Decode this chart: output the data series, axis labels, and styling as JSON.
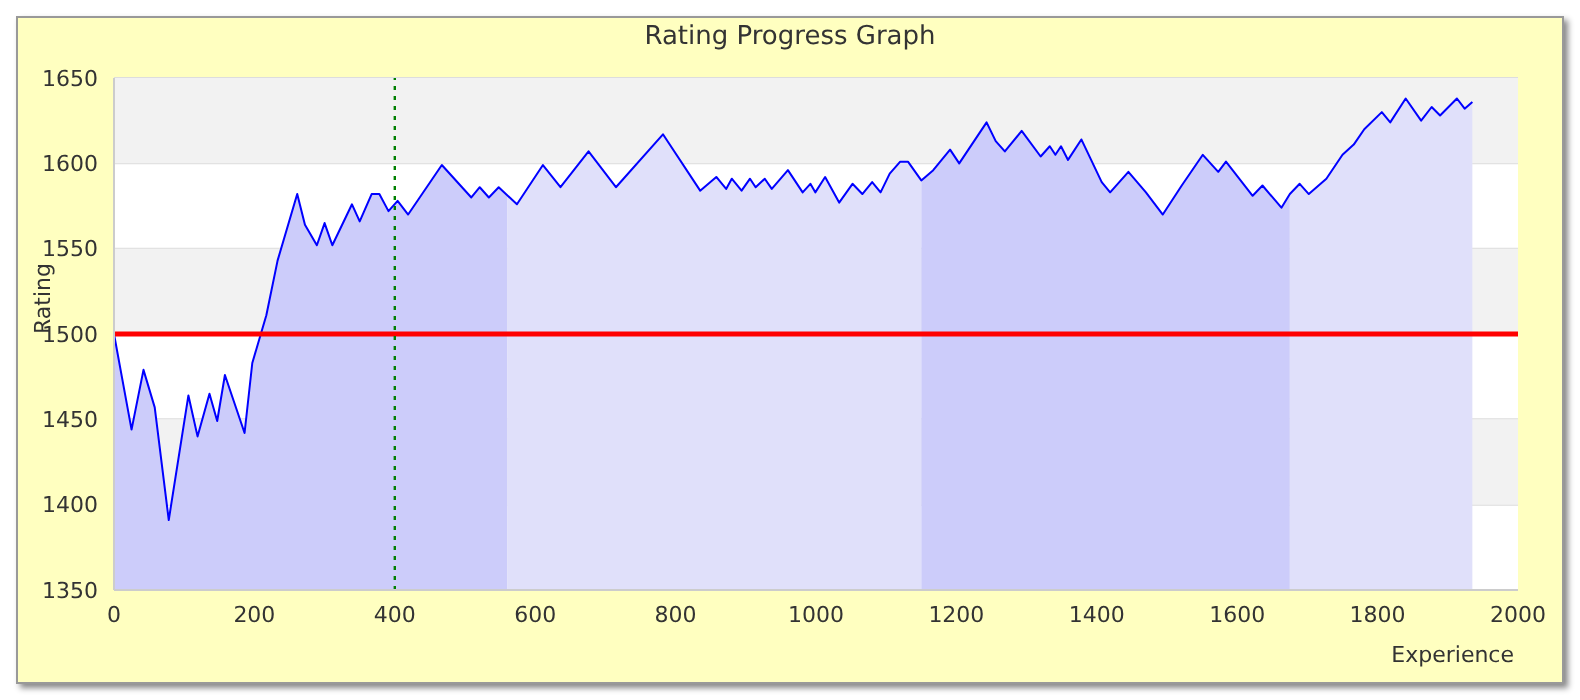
{
  "chart_data": {
    "type": "area",
    "title": "Rating Progress Graph",
    "xlabel": "Experience",
    "ylabel": "Rating",
    "xlim": [
      0,
      2000
    ],
    "xticks": [
      0,
      200,
      400,
      600,
      800,
      1000,
      1200,
      1400,
      1600,
      1800,
      2000
    ],
    "ylim": [
      1350,
      1650
    ],
    "yticks": [
      1350,
      1400,
      1450,
      1500,
      1550,
      1600,
      1650
    ],
    "grid": "y",
    "legend": false,
    "marker": "none",
    "ref_lines": [
      {
        "axis": "y",
        "value": 1500,
        "color": "#ff0000",
        "line_style": "solid"
      },
      {
        "axis": "x",
        "value": 400,
        "color": "#008000",
        "line_style": "dotted"
      }
    ],
    "series": [
      {
        "color": "#ccccfa",
        "x": [
          0,
          25,
          42,
          58,
          78,
          106,
          119,
          136,
          147,
          158,
          186,
          197,
          217,
          233,
          261,
          272,
          289,
          300,
          311,
          339,
          350,
          367,
          378,
          391,
          404,
          419,
          467,
          509,
          521,
          534,
          548,
          560
        ],
        "values": [
          1500,
          1444,
          1479,
          1457,
          1391,
          1464,
          1440,
          1465,
          1449,
          1476,
          1442,
          1483,
          1511,
          1543,
          1582,
          1564,
          1552,
          1565,
          1552,
          1576,
          1566,
          1582,
          1582,
          1572,
          1578,
          1570,
          1599,
          1580,
          1586,
          1580,
          1586,
          1581
        ]
      },
      {
        "color": "#e0e0fa",
        "x": [
          560,
          574,
          611,
          636,
          676,
          715,
          782,
          835,
          858,
          872,
          880,
          894,
          906,
          914,
          927,
          937,
          960,
          981,
          992,
          999,
          1013,
          1033,
          1052,
          1066,
          1080,
          1092,
          1105,
          1120,
          1131,
          1150
        ],
        "values": [
          1581,
          1576,
          1599,
          1586,
          1607,
          1586,
          1617,
          1584,
          1592,
          1585,
          1591,
          1584,
          1591,
          1586,
          1591,
          1585,
          1596,
          1583,
          1588,
          1583,
          1592,
          1577,
          1588,
          1582,
          1589,
          1583,
          1594,
          1601,
          1601,
          1590
        ]
      },
      {
        "color": "#ccccfa",
        "x": [
          1150,
          1167,
          1191,
          1204,
          1243,
          1256,
          1269,
          1293,
          1320,
          1333,
          1341,
          1349,
          1359,
          1378,
          1407,
          1419,
          1445,
          1470,
          1494,
          1521,
          1551,
          1573,
          1584,
          1622,
          1636,
          1663,
          1675
        ],
        "values": [
          1590,
          1596,
          1608,
          1600,
          1624,
          1613,
          1607,
          1619,
          1604,
          1610,
          1605,
          1610,
          1602,
          1614,
          1589,
          1583,
          1595,
          1583,
          1570,
          1587,
          1605,
          1595,
          1601,
          1581,
          1587,
          1574,
          1582
        ]
      },
      {
        "color": "#e0e0fa",
        "x": [
          1675,
          1689,
          1702,
          1727,
          1750,
          1766,
          1781,
          1806,
          1818,
          1840,
          1862,
          1877,
          1889,
          1913,
          1924,
          1935
        ],
        "values": [
          1582,
          1588,
          1582,
          1591,
          1605,
          1611,
          1620,
          1630,
          1624,
          1638,
          1625,
          1633,
          1628,
          1638,
          1632,
          1636
        ]
      },
      {
        "type": "line",
        "color": "#0000ff",
        "x": [
          0,
          25,
          42,
          58,
          78,
          106,
          119,
          136,
          147,
          158,
          186,
          197,
          217,
          233,
          261,
          272,
          289,
          300,
          311,
          339,
          350,
          367,
          378,
          391,
          404,
          419,
          467,
          509,
          521,
          534,
          548,
          574,
          611,
          636,
          676,
          715,
          782,
          835,
          858,
          872,
          880,
          894,
          906,
          914,
          927,
          937,
          960,
          981,
          992,
          999,
          1013,
          1033,
          1052,
          1066,
          1080,
          1092,
          1105,
          1120,
          1131,
          1150,
          1167,
          1191,
          1204,
          1243,
          1256,
          1269,
          1293,
          1320,
          1333,
          1341,
          1349,
          1359,
          1378,
          1407,
          1419,
          1445,
          1470,
          1494,
          1521,
          1551,
          1573,
          1584,
          1622,
          1636,
          1663,
          1675,
          1689,
          1702,
          1727,
          1750,
          1766,
          1781,
          1806,
          1818,
          1840,
          1862,
          1877,
          1889,
          1913,
          1924,
          1935
        ],
        "values": [
          1500,
          1444,
          1479,
          1457,
          1391,
          1464,
          1440,
          1465,
          1449,
          1476,
          1442,
          1483,
          1511,
          1543,
          1582,
          1564,
          1552,
          1565,
          1552,
          1576,
          1566,
          1582,
          1582,
          1572,
          1578,
          1570,
          1599,
          1580,
          1586,
          1580,
          1586,
          1576,
          1599,
          1586,
          1607,
          1586,
          1617,
          1584,
          1592,
          1585,
          1591,
          1584,
          1591,
          1586,
          1591,
          1585,
          1596,
          1583,
          1588,
          1583,
          1592,
          1577,
          1588,
          1582,
          1589,
          1583,
          1594,
          1601,
          1601,
          1590,
          1596,
          1608,
          1600,
          1624,
          1613,
          1607,
          1619,
          1604,
          1610,
          1605,
          1610,
          1602,
          1614,
          1589,
          1583,
          1595,
          1583,
          1570,
          1587,
          1605,
          1595,
          1601,
          1581,
          1587,
          1574,
          1582,
          1588,
          1582,
          1591,
          1605,
          1611,
          1620,
          1630,
          1624,
          1638,
          1625,
          1633,
          1628,
          1638,
          1632,
          1636
        ]
      }
    ]
  }
}
